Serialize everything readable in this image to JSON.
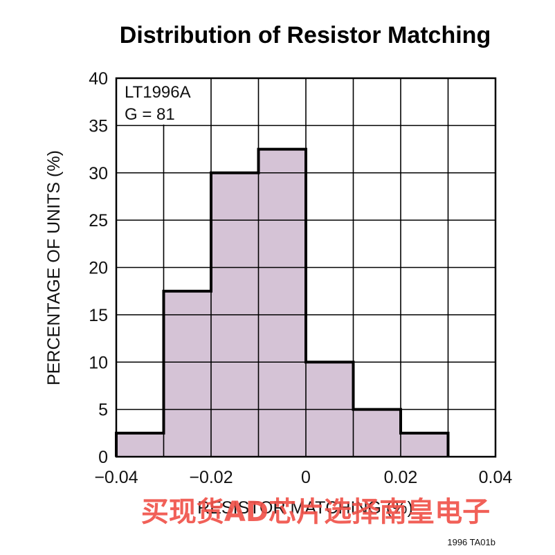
{
  "chart_data": {
    "type": "bar",
    "title": "Distribution of Resistor Matching",
    "xlabel": "RESISTOR MATCHING (%)",
    "ylabel": "PERCENTAGE OF UNITS (%)",
    "xlim": [
      -0.04,
      0.04
    ],
    "ylim": [
      0,
      40
    ],
    "x_ticks": [
      "−0.04",
      "−0.02",
      "0",
      "0.02",
      "0.04"
    ],
    "y_ticks": [
      "0",
      "5",
      "10",
      "15",
      "20",
      "25",
      "30",
      "35",
      "40"
    ],
    "bin_edges": [
      -0.04,
      -0.03,
      -0.02,
      -0.01,
      0.0,
      0.01,
      0.02,
      0.03
    ],
    "values": [
      2.5,
      17.5,
      30,
      32.5,
      10,
      5,
      2.5
    ],
    "grid": true,
    "annotations": [
      "LT1996A",
      "G = 81"
    ],
    "colors": {
      "fill": "#d5c3d6",
      "outline": "#000000",
      "grid": "#000000"
    }
  },
  "figure_id": "1996 TA01b",
  "watermark": {
    "text": "买现货AD芯片选择南皇电子",
    "color": "#f0534a"
  }
}
